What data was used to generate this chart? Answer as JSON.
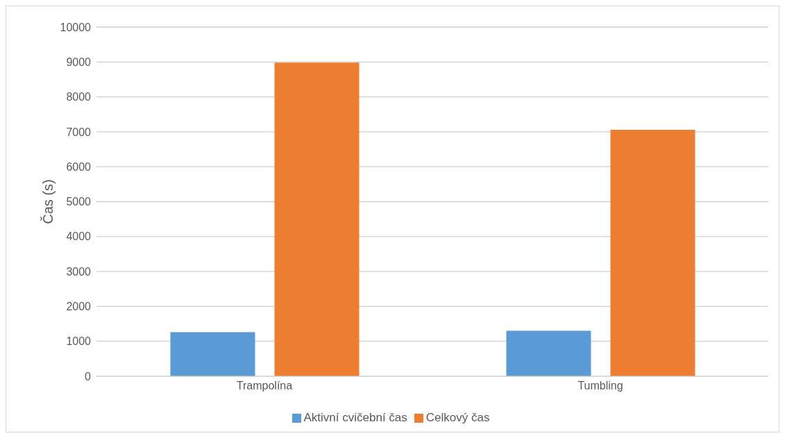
{
  "chart_data": {
    "type": "bar",
    "ylabel": "Čas (s)",
    "categories": [
      "Trampolína",
      "Tumbling"
    ],
    "series": [
      {
        "name": "Aktivní cvičební čas",
        "color": "#5b9bd5",
        "values": [
          1260,
          1300
        ]
      },
      {
        "name": "Celkový čas",
        "color": "#ed7d31",
        "values": [
          8980,
          7060
        ]
      }
    ],
    "ylim": [
      0,
      10000
    ],
    "yticks": [
      0,
      1000,
      2000,
      3000,
      4000,
      5000,
      6000,
      7000,
      8000,
      9000,
      10000
    ],
    "grid": "y",
    "legend": "bottom"
  }
}
